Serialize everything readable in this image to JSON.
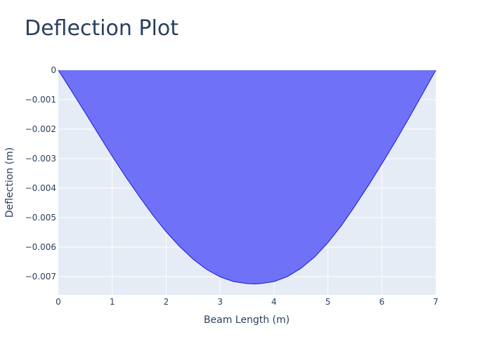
{
  "chart_data": {
    "type": "area",
    "title": "Deflection Plot",
    "xlabel": "Beam Length (m)",
    "ylabel": "Deflection (m)",
    "xlim": [
      0,
      7
    ],
    "ylim": [
      -0.00762,
      0
    ],
    "xticks": [
      0,
      1,
      2,
      3,
      4,
      5,
      6,
      7
    ],
    "xtick_labels": [
      "0",
      "1",
      "2",
      "3",
      "4",
      "5",
      "6",
      "7"
    ],
    "yticks": [
      0,
      -0.001,
      -0.002,
      -0.003,
      -0.004,
      -0.005,
      -0.006,
      -0.007
    ],
    "ytick_labels": [
      "0",
      "−0.001",
      "−0.002",
      "−0.003",
      "−0.004",
      "−0.005",
      "−0.006",
      "−0.007"
    ],
    "grid": true,
    "legend": false,
    "series": [
      {
        "x": [
          0,
          0.25,
          0.5,
          0.75,
          1.0,
          1.25,
          1.5,
          1.75,
          2.0,
          2.25,
          2.5,
          2.75,
          3.0,
          3.25,
          3.5,
          3.65,
          3.75,
          4.0,
          4.25,
          4.5,
          4.75,
          5.0,
          5.25,
          5.5,
          5.75,
          6.0,
          6.25,
          6.5,
          6.75,
          7.0
        ],
        "y": [
          0,
          -0.00072,
          -0.00145,
          -0.00219,
          -0.00292,
          -0.00362,
          -0.00428,
          -0.00491,
          -0.00548,
          -0.00598,
          -0.00641,
          -0.00676,
          -0.00701,
          -0.00717,
          -0.00724,
          -0.00725,
          -0.00724,
          -0.00717,
          -0.007,
          -0.00672,
          -0.00634,
          -0.00585,
          -0.00527,
          -0.00461,
          -0.00391,
          -0.00318,
          -0.00242,
          -0.00163,
          -0.00082,
          0
        ]
      }
    ],
    "colors": {
      "fill": "#6f71f7",
      "line": "#1a1adb",
      "plot_bg": "#e5ecf6",
      "grid": "#ffffff",
      "text": "#2a3f5f"
    }
  }
}
